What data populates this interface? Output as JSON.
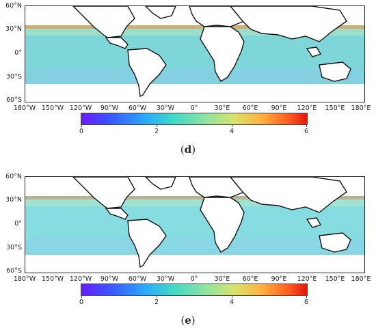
{
  "lat_labels": [
    "60°N",
    "30°N",
    "0°",
    "30°S",
    "60°S"
  ],
  "lon_labels": [
    "180°W",
    "150°W",
    "120°W",
    "90°W",
    "60°W",
    "30°W",
    "0°",
    "30°E",
    "60°E",
    "90°E",
    "120°E",
    "150°E",
    "180°E"
  ],
  "colorbar": {
    "ticks": [
      "0",
      "2",
      "4",
      "6"
    ],
    "range": [
      0,
      6
    ]
  },
  "panels": [
    {
      "label_open": "(",
      "label_letter": "d",
      "label_close": ")"
    },
    {
      "label_open": "(",
      "label_letter": "e",
      "label_close": ")"
    }
  ]
}
